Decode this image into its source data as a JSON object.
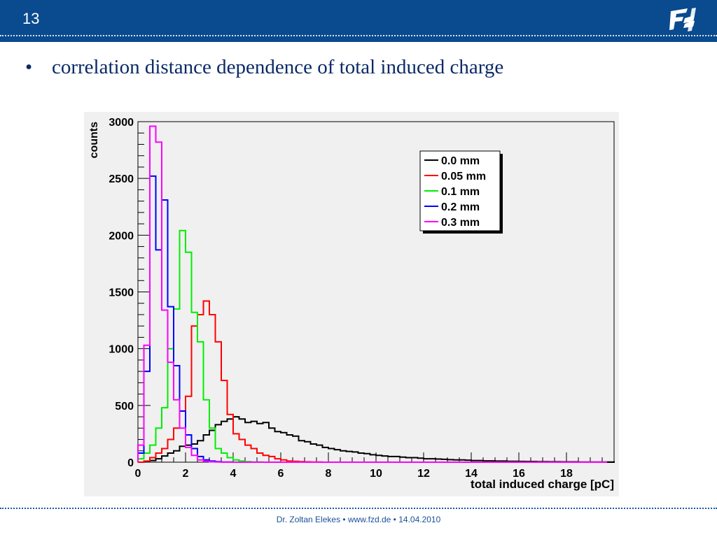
{
  "slide": {
    "page_number": "13",
    "bullet_text": "correlation distance dependence of total induced charge",
    "footer": {
      "author": "Dr. Zoltan Elekes",
      "website": "www.fzd.de",
      "date": "14.04.2010",
      "separator": "•"
    },
    "colors": {
      "header": "#0a4a8e",
      "footer_text": "#1a4f9a",
      "bullet_text": "#0a2a66"
    },
    "logo_icon": "fzd-logo-icon"
  },
  "chart_data": {
    "type": "line",
    "subtype": "step-histogram",
    "title": "",
    "xlabel": "total induced charge [pC]",
    "ylabel": "counts",
    "xlim": [
      0,
      20
    ],
    "ylim": [
      0,
      3000
    ],
    "x_ticks": [
      0,
      2,
      4,
      6,
      8,
      10,
      12,
      14,
      16,
      18
    ],
    "y_ticks": [
      0,
      500,
      1000,
      1500,
      2000,
      2500,
      3000
    ],
    "grid": false,
    "legend_position": "top-right",
    "bin_width": 0.25,
    "series": [
      {
        "name": "0.0 mm",
        "color": "#000000",
        "values": [
          0,
          5,
          15,
          30,
          55,
          80,
          100,
          140,
          150,
          160,
          190,
          240,
          280,
          330,
          360,
          380,
          400,
          380,
          350,
          360,
          340,
          350,
          300,
          270,
          260,
          240,
          230,
          190,
          180,
          160,
          150,
          130,
          120,
          110,
          100,
          95,
          90,
          80,
          75,
          65,
          60,
          55,
          50,
          50,
          45,
          40,
          40,
          35,
          30,
          30,
          28,
          25,
          22,
          20,
          20,
          18,
          15,
          15,
          12,
          12,
          10,
          10,
          8,
          8,
          7,
          6,
          6,
          5,
          5,
          4,
          4,
          3,
          3,
          3,
          2,
          2,
          2,
          1,
          1,
          1
        ]
      },
      {
        "name": "0.05 mm",
        "color": "#ff0000",
        "values": [
          0,
          10,
          40,
          80,
          120,
          200,
          300,
          450,
          580,
          1200,
          1300,
          1420,
          1300,
          1060,
          720,
          420,
          250,
          200,
          150,
          120,
          80,
          60,
          50,
          30,
          20,
          10,
          8,
          5,
          3,
          2,
          1,
          0
        ]
      },
      {
        "name": "0.1 mm",
        "color": "#00ee00",
        "values": [
          30,
          80,
          150,
          300,
          480,
          1000,
          1350,
          2040,
          1850,
          1320,
          1060,
          550,
          300,
          120,
          80,
          40,
          20,
          10,
          5,
          2,
          1,
          0
        ]
      },
      {
        "name": "0.2 mm",
        "color": "#0000ff",
        "values": [
          80,
          800,
          2520,
          1870,
          2310,
          1370,
          850,
          450,
          240,
          120,
          50,
          20,
          10,
          5,
          2,
          1,
          0
        ]
      },
      {
        "name": "0.3 mm",
        "color": "#ff00ff",
        "values": [
          150,
          1030,
          2960,
          2820,
          1340,
          880,
          550,
          300,
          130,
          60,
          20,
          8,
          3,
          1,
          0
        ]
      }
    ]
  }
}
